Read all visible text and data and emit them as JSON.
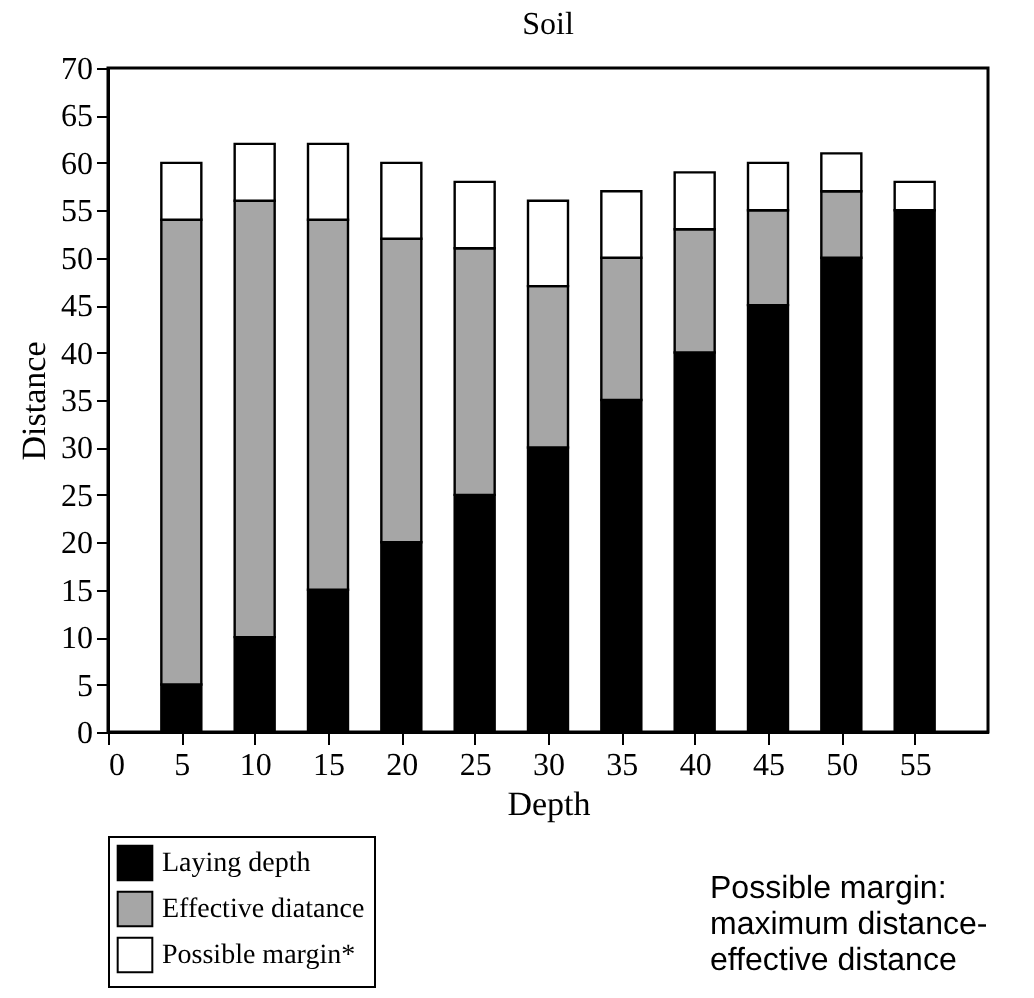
{
  "chart_data": {
    "type": "bar",
    "title": "Soil",
    "xlabel": "Depth",
    "ylabel": "Distance",
    "stacked": true,
    "x": [
      5,
      10,
      15,
      20,
      25,
      30,
      35,
      40,
      45,
      50,
      55
    ],
    "series": [
      {
        "name": "Laying depth",
        "color": "#000000",
        "values": [
          5,
          10,
          15,
          20,
          25,
          30,
          35,
          40,
          45,
          50,
          55
        ]
      },
      {
        "name": "Effective diatance",
        "color": "#a6a6a6",
        "values": [
          49,
          46,
          39,
          32,
          26,
          17,
          15,
          13,
          10,
          7,
          0
        ]
      },
      {
        "name": "Possible margin*",
        "color": "#ffffff",
        "values": [
          6,
          6,
          8,
          8,
          7,
          9,
          7,
          6,
          5,
          4,
          3
        ]
      }
    ],
    "xlim": [
      0,
      60
    ],
    "xticks": [
      0,
      5,
      10,
      15,
      20,
      25,
      30,
      35,
      40,
      45,
      50,
      55
    ],
    "ylim": [
      0,
      70
    ],
    "yticks": [
      0,
      5,
      10,
      15,
      20,
      25,
      30,
      35,
      40,
      45,
      50,
      55,
      60,
      65,
      70
    ],
    "legend": "bottom left",
    "annotations": [
      "Possible margin: maximum distance-effective distance"
    ]
  }
}
